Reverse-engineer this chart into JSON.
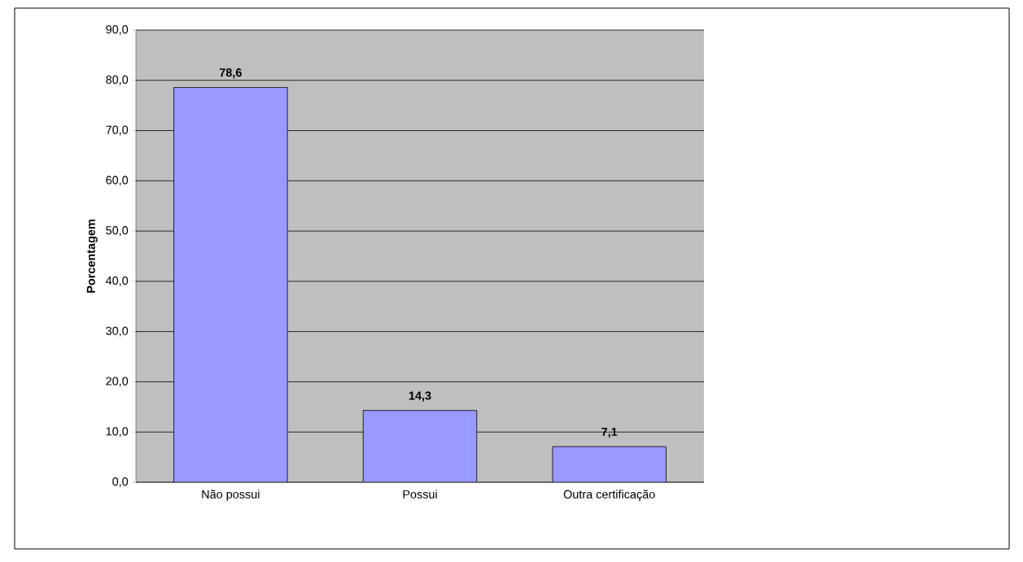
{
  "chart_data": {
    "type": "bar",
    "ylabel": "Porcentagem",
    "categories": [
      "Não possui",
      "Possui",
      "Outra certificação"
    ],
    "values": [
      78.6,
      14.3,
      7.1
    ],
    "color": "#9999ff",
    "value_labels": [
      "78,6",
      "14,3",
      "7,1"
    ],
    "ylim": [
      0,
      90
    ],
    "yticks": [
      {
        "value": 0,
        "label": "0,0"
      },
      {
        "value": 10,
        "label": "10,0"
      },
      {
        "value": 20,
        "label": "20,0"
      },
      {
        "value": 30,
        "label": "30,0"
      },
      {
        "value": 40,
        "label": "40,0"
      },
      {
        "value": 50,
        "label": "50,0"
      },
      {
        "value": 60,
        "label": "60,0"
      },
      {
        "value": 70,
        "label": "70,0"
      },
      {
        "value": 80,
        "label": "80,0"
      },
      {
        "value": 90,
        "label": "90,0"
      }
    ],
    "grid": "y"
  }
}
